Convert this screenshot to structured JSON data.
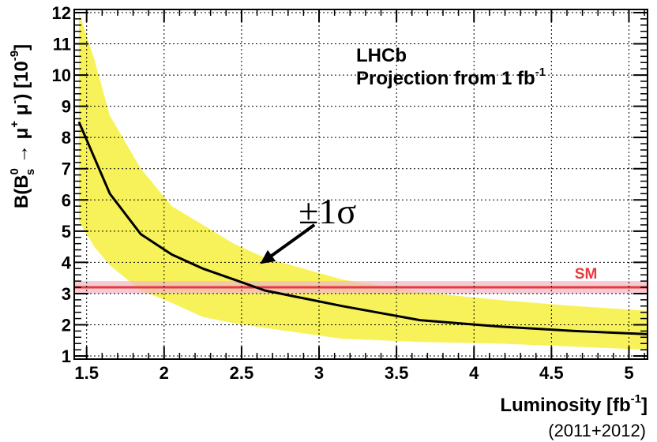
{
  "chart_data": {
    "type": "line",
    "experiment_label": "LHCb",
    "projection_label": "Projection from 1 fb",
    "projection_label_sup": "-1",
    "xlabel": "Luminosity [fb",
    "xlabel_sup": "-1",
    "xlabel_tail": "]",
    "xlabel_note": "(2011+2012)",
    "ylabel": "B(B_s^0 → μ^+ μ^-) [10^-9]",
    "xlim": [
      1.42,
      5.12
    ],
    "ylim": [
      0.9,
      12.1
    ],
    "x_ticks": [
      1.5,
      2,
      2.5,
      3,
      3.5,
      4,
      4.5,
      5
    ],
    "x_tick_labels": [
      "1.5",
      "2",
      "2.5",
      "3",
      "3.5",
      "4",
      "4.5",
      "5"
    ],
    "y_ticks": [
      1,
      2,
      3,
      4,
      5,
      6,
      7,
      8,
      9,
      10,
      11,
      12
    ],
    "y_tick_labels": [
      "1",
      "2",
      "3",
      "4",
      "5",
      "6",
      "7",
      "8",
      "9",
      "10",
      "11",
      "12"
    ],
    "grid": true,
    "series": [
      {
        "role": "central",
        "color": "#000000",
        "x": [
          1.45,
          1.65,
          1.85,
          2.05,
          2.25,
          2.45,
          2.65,
          3.15,
          3.65,
          4.15,
          4.65,
          5.12
        ],
        "y": [
          8.5,
          6.2,
          4.9,
          4.25,
          3.8,
          3.45,
          3.1,
          2.6,
          2.15,
          1.95,
          1.8,
          1.7
        ]
      }
    ],
    "band": {
      "label": "±1σ",
      "color": "#f7f25a",
      "x": [
        1.45,
        1.55,
        1.65,
        1.85,
        2.05,
        2.25,
        2.45,
        2.65,
        3.15,
        3.65,
        4.15,
        4.65,
        5.12
      ],
      "upper": [
        12.0,
        10.5,
        8.7,
        7.0,
        5.8,
        5.2,
        4.6,
        4.15,
        3.45,
        3.05,
        2.8,
        2.6,
        2.45
      ],
      "lower": [
        5.3,
        4.5,
        3.9,
        3.1,
        2.7,
        2.25,
        2.05,
        1.9,
        1.55,
        1.45,
        1.4,
        1.3,
        1.2
      ]
    },
    "reference": {
      "label": "SM",
      "value": 3.2,
      "band_low": 3.0,
      "band_high": 3.4,
      "color": "#e8393f",
      "band_color": "#f1b9c6"
    },
    "annotation": {
      "text": "±1σ",
      "arrow_tail": [
        2.97,
        5.2
      ],
      "arrow_head": [
        2.62,
        3.95
      ]
    }
  }
}
